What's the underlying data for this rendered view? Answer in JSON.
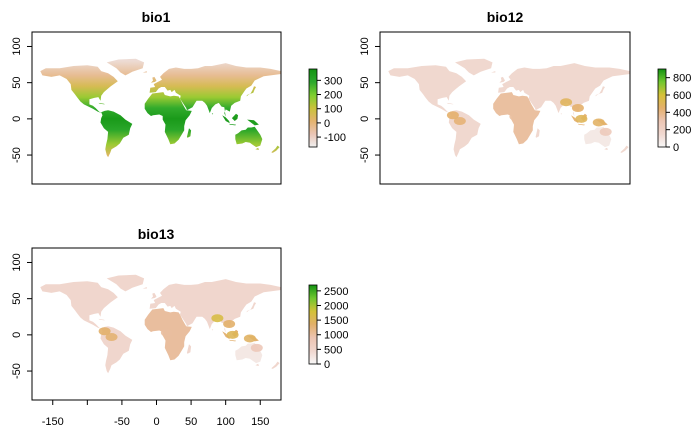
{
  "maps": [
    {
      "title": "bio1",
      "y_ticks": [
        "100",
        "50",
        "0",
        "-50"
      ],
      "x_ticks": [],
      "legend": {
        "labels": [
          "300",
          "200",
          "100",
          "0",
          "-100"
        ],
        "values": [
          300,
          200,
          100,
          0,
          -100
        ],
        "range": [
          -170,
          380
        ]
      },
      "palette": [
        "#f0f0f0",
        "#eac5b5",
        "#e4b36e",
        "#c9c33a",
        "#7ccf2f",
        "#2ca82c",
        "#129412"
      ],
      "fill_style": "temperature"
    },
    {
      "title": "bio12",
      "y_ticks": [
        "100",
        "50",
        "0",
        "-50"
      ],
      "x_ticks": [],
      "legend": {
        "labels": [
          "800",
          "600",
          "400",
          "200",
          "0"
        ],
        "values": [
          800,
          600,
          400,
          200,
          0
        ],
        "range": [
          0,
          900
        ]
      },
      "palette": [
        "#f8f8f8",
        "#f0d8d0",
        "#ecc6b4",
        "#e4b06c",
        "#d6c239",
        "#72c830",
        "#139313"
      ],
      "fill_style": "precip"
    },
    {
      "title": "bio13",
      "y_ticks": [
        "100",
        "50",
        "0",
        "-50"
      ],
      "x_ticks": [
        "-150",
        "-50",
        "0",
        "50",
        "100",
        "150"
      ],
      "legend": {
        "labels": [
          "2500",
          "2000",
          "1500",
          "1000",
          "500",
          "0"
        ],
        "values": [
          2500,
          2000,
          1500,
          1000,
          500,
          0
        ],
        "range": [
          0,
          2700
        ]
      },
      "palette": [
        "#f8f8f8",
        "#f0d6ce",
        "#ecc4b2",
        "#e2b06a",
        "#d3c238",
        "#6fc62f",
        "#139313"
      ],
      "fill_style": "precip"
    }
  ],
  "axes": {
    "xlim": [
      -180,
      180
    ],
    "ylim": [
      -90,
      120
    ]
  }
}
